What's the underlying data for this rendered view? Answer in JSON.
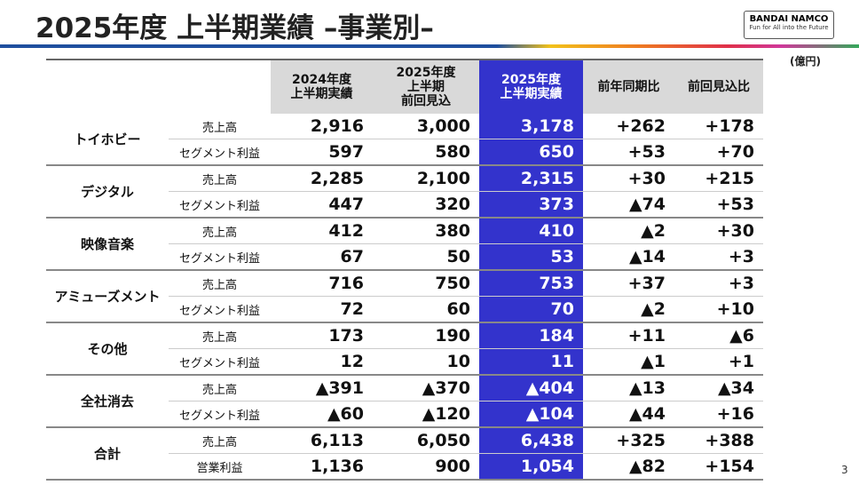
{
  "header": {
    "title": "2025年度 上半期業績 –事業別–",
    "logo": {
      "name": "BANDAI NAMCO",
      "tagline": "Fun for All into the Future"
    },
    "unit": "(億円)"
  },
  "table": {
    "columns": [
      [
        "2024年度",
        "上半期実績"
      ],
      [
        "2025年度",
        "上半期",
        "前回見込"
      ],
      [
        "2025年度",
        "上半期実績"
      ],
      [
        "前年同期比"
      ],
      [
        "前回見込比"
      ]
    ],
    "groups": [
      {
        "name": "トイホビー",
        "rows": [
          {
            "label": "売上高",
            "values": [
              "2,916",
              "3,000",
              "3,178",
              "+262",
              "+178"
            ]
          },
          {
            "label": "セグメント利益",
            "values": [
              "597",
              "580",
              "650",
              "+53",
              "+70"
            ]
          }
        ]
      },
      {
        "name": "デジタル",
        "rows": [
          {
            "label": "売上高",
            "values": [
              "2,285",
              "2,100",
              "2,315",
              "+30",
              "+215"
            ]
          },
          {
            "label": "セグメント利益",
            "values": [
              "447",
              "320",
              "373",
              "▲74",
              "+53"
            ]
          }
        ]
      },
      {
        "name": "映像音楽",
        "rows": [
          {
            "label": "売上高",
            "values": [
              "412",
              "380",
              "410",
              "▲2",
              "+30"
            ]
          },
          {
            "label": "セグメント利益",
            "values": [
              "67",
              "50",
              "53",
              "▲14",
              "+3"
            ]
          }
        ]
      },
      {
        "name": "アミューズメント",
        "rows": [
          {
            "label": "売上高",
            "values": [
              "716",
              "750",
              "753",
              "+37",
              "+3"
            ]
          },
          {
            "label": "セグメント利益",
            "values": [
              "72",
              "60",
              "70",
              "▲2",
              "+10"
            ]
          }
        ]
      },
      {
        "name": "その他",
        "rows": [
          {
            "label": "売上高",
            "values": [
              "173",
              "190",
              "184",
              "+11",
              "▲6"
            ]
          },
          {
            "label": "セグメント利益",
            "values": [
              "12",
              "10",
              "11",
              "▲1",
              "+1"
            ]
          }
        ]
      },
      {
        "name": "全社消去",
        "rows": [
          {
            "label": "売上高",
            "values": [
              "▲391",
              "▲370",
              "▲404",
              "▲13",
              "▲34"
            ]
          },
          {
            "label": "セグメント利益",
            "values": [
              "▲60",
              "▲120",
              "▲104",
              "▲44",
              "+16"
            ]
          }
        ]
      },
      {
        "name": "合計",
        "rows": [
          {
            "label": "売上高",
            "values": [
              "6,113",
              "6,050",
              "6,438",
              "+325",
              "+388"
            ]
          },
          {
            "label": "営業利益",
            "values": [
              "1,136",
              "900",
              "1,054",
              "▲82",
              "+154"
            ]
          }
        ]
      }
    ]
  },
  "page_number": "3"
}
